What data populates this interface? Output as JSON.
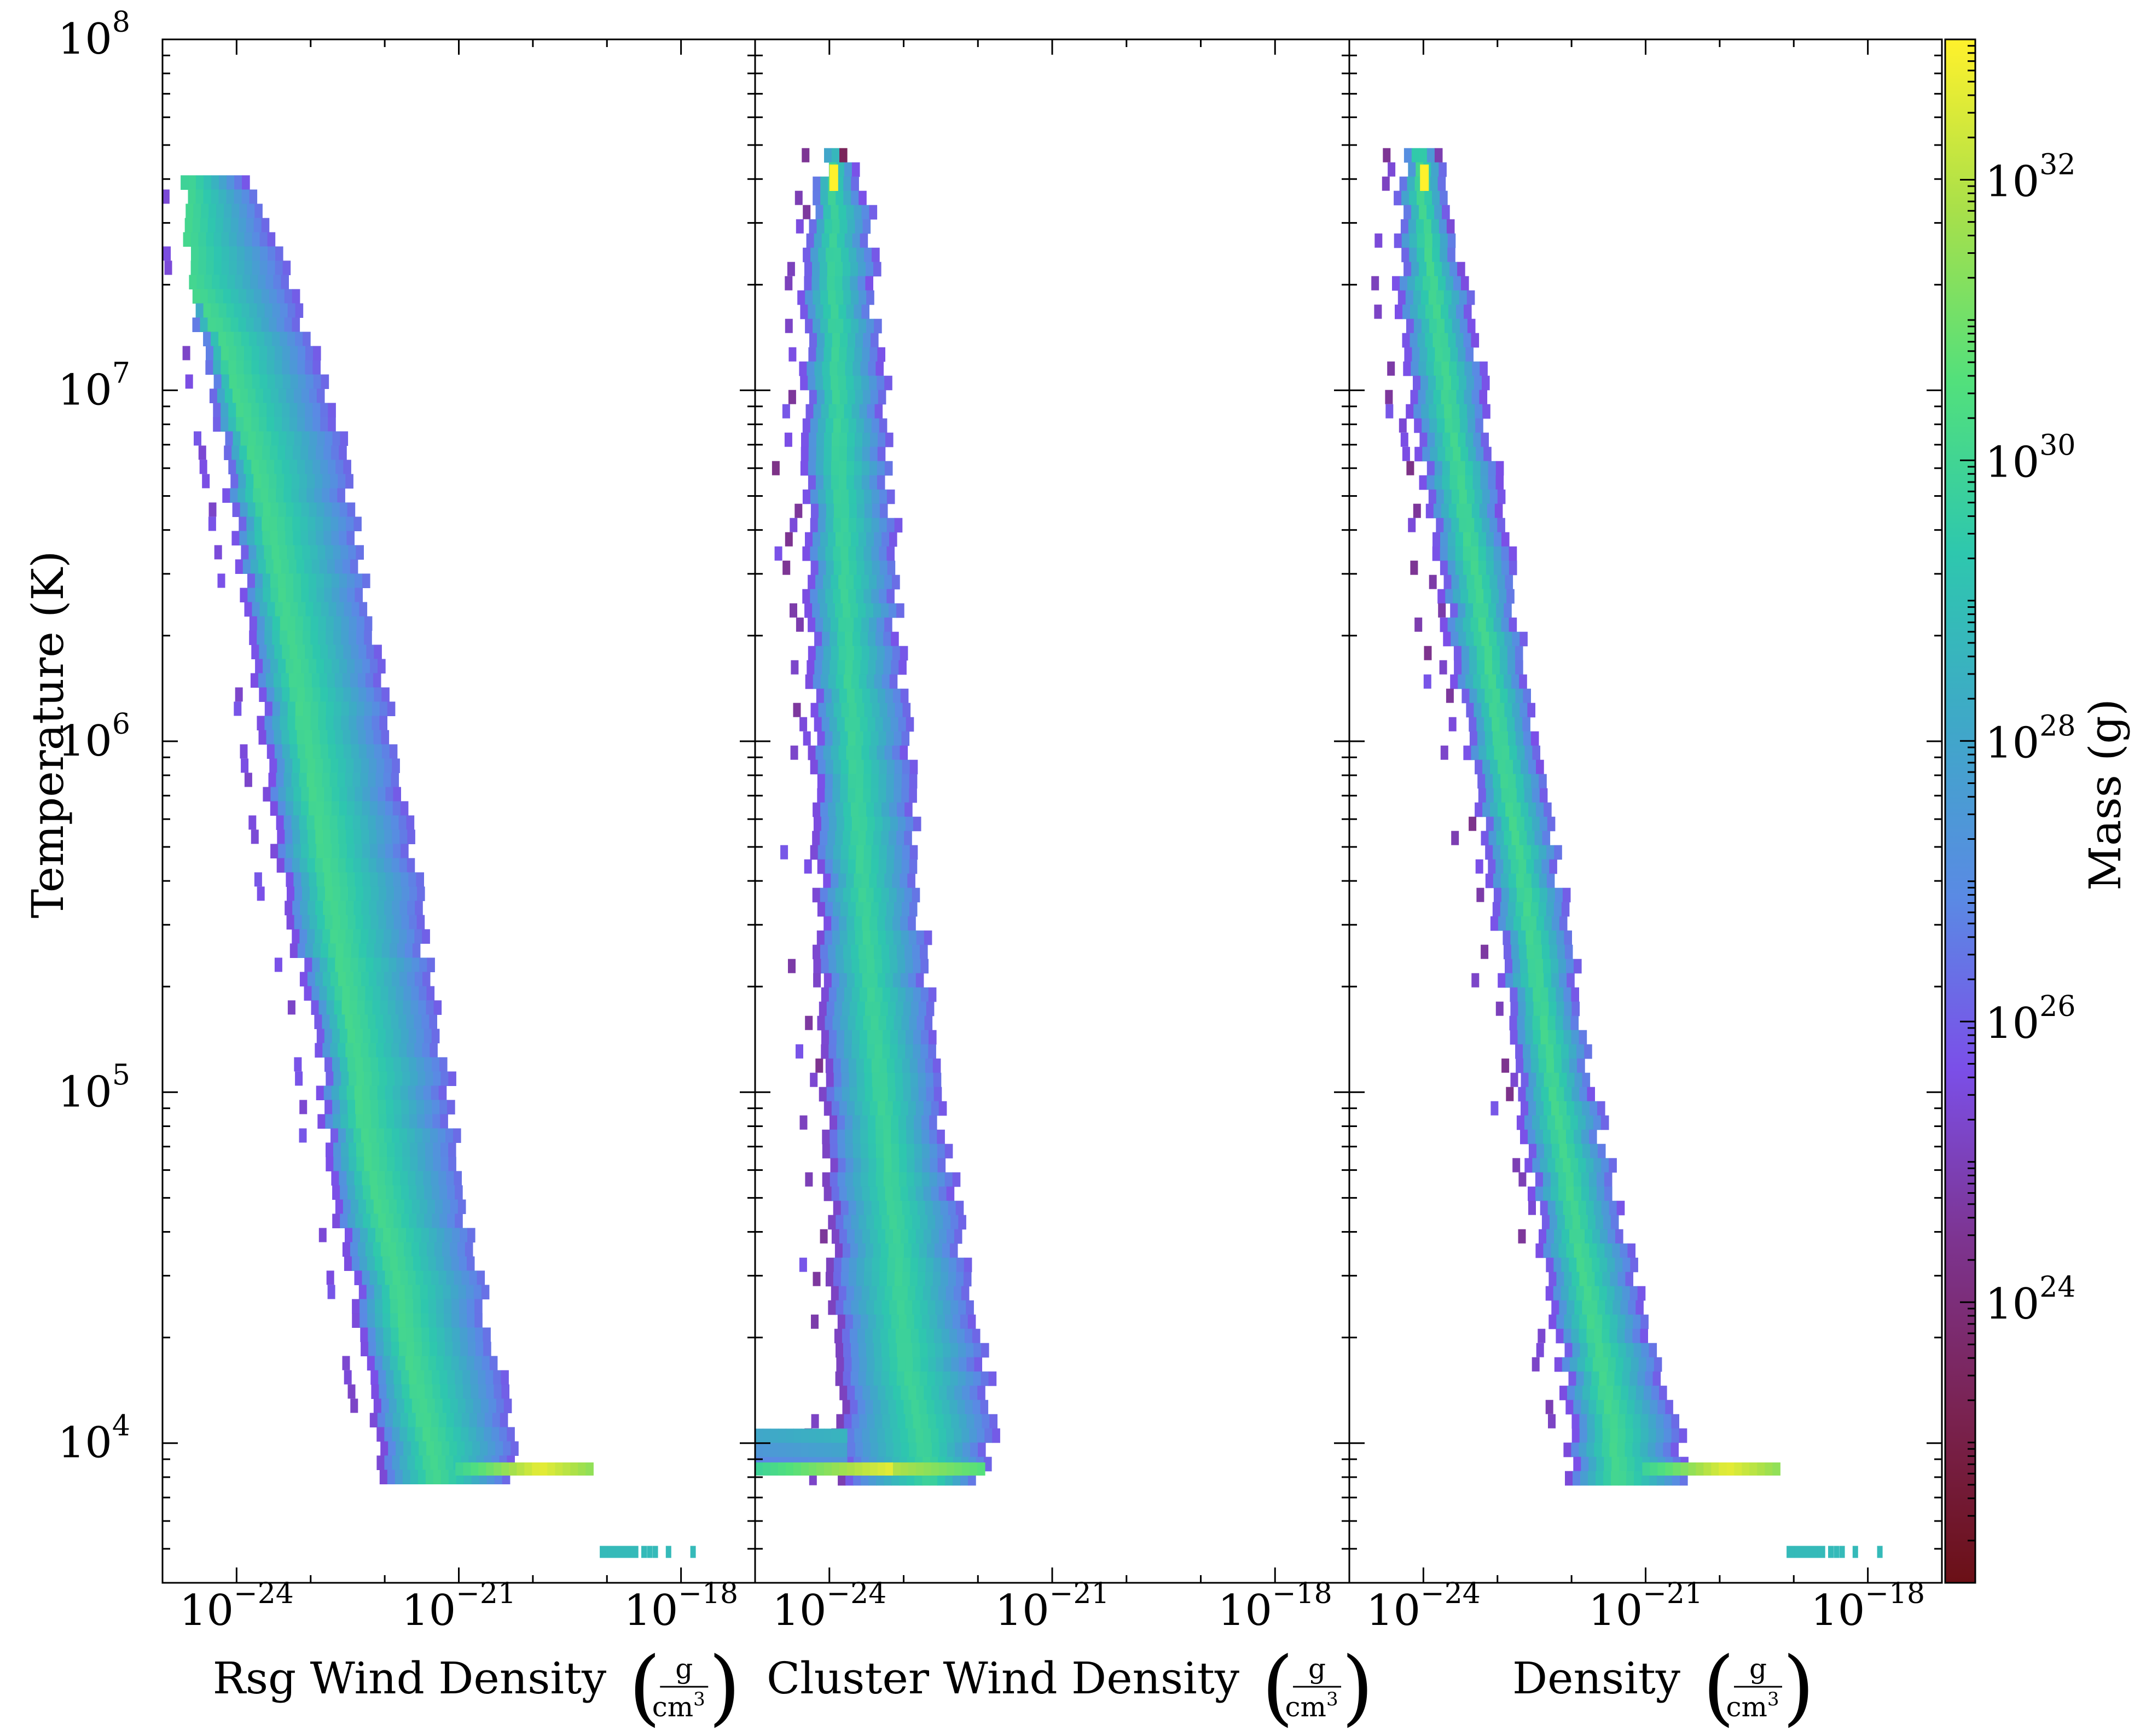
{
  "chart_data": {
    "type": "heatmap",
    "panels": [
      {
        "xlabel": "Rsg Wind Density",
        "xunit_num": "g",
        "xunit_den": "cm",
        "xunit_exp": "3",
        "bands": [
          {
            "T": [
              41000000.0,
              32000000.0,
              21000000.0,
              14000000.0,
              8700000.0,
              4200000.0,
              1900000.0,
              850000.0,
              370000.0,
              145000.0,
              65000.0,
              32000.0,
              16000.0,
              10000.0,
              7800.0
            ],
            "rho": [
              2e-25,
              2e-25,
              2.2e-25,
              3.4e-25,
              5e-25,
              8.9e-25,
              1.6e-24,
              2.4e-24,
              4e-24,
              1.2e-23,
              1.6e-23,
              3.2e-23,
              5.6e-23,
              8.3e-23,
              9.5e-23
            ],
            "peak": [
              2e-25,
              2e-25,
              2e-25,
              6e-25,
              1.1e-24,
              2.5e-24,
              5e-24,
              9e-24,
              1.7e-23,
              3.4e-23,
              5.5e-23,
              1.2e-22,
              2.2e-22,
              3.8e-22,
              4.6e-22
            ],
            "hi": [
              1.2e-24,
              2.2e-24,
              4.5e-24,
              9e-24,
              1.8e-23,
              4e-23,
              7.2e-23,
              1.3e-22,
              2.8e-22,
              5e-22,
              9e-22,
              1.8e-21,
              3.2e-21,
              5.5e-21,
              4.8e-21
            ],
            "cmax": 0.74
          }
        ],
        "hot_strip": {
          "T": 8500.0,
          "rho": [
            9e-22,
            6e-20
          ],
          "level": 0.97
        },
        "cool_strip": {
          "T": 4900.0,
          "rho": [
            8e-20,
            1.5e-18
          ],
          "level": 0.62
        }
      },
      {
        "xlabel": "Cluster Wind Density",
        "xunit_num": "g",
        "xunit_den": "cm",
        "xunit_exp": "3",
        "bands": [
          {
            "T": [
              49000000.0,
              35000000.0,
              19000000.0,
              10000000.0,
              5500000.0,
              3000000.0,
              1600000.0,
              830000.0,
              420000.0,
              200000.0,
              110000.0,
              60000.0,
              32000.0,
              17000.0,
              11000.0,
              7800.0
            ],
            "rho": [
              1e-24,
              6e-25,
              4.5e-25,
              4.8e-25,
              5e-25,
              5.2e-25,
              5.5e-25,
              6e-25,
              6.8e-25,
              7.2e-25,
              7.8e-25,
              8.8e-25,
              1.05e-24,
              1.2e-24,
              1.3e-24,
              1.3e-24
            ],
            "peak": [
              1.1e-24,
              1.05e-24,
              1.1e-24,
              1.2e-24,
              1.3e-24,
              1.5e-24,
              1.7e-24,
              2.1e-24,
              2.6e-24,
              3.4e-24,
              4.5e-24,
              6.2e-24,
              8e-24,
              1e-23,
              1.6e-23,
              2.2e-23
            ],
            "hi": [
              1.5e-24,
              3e-24,
              3.8e-24,
              5e-24,
              6e-24,
              7e-24,
              8.6e-24,
              1.1e-23,
              1.4e-23,
              1.9e-23,
              2.6e-23,
              3.9e-23,
              6.5e-23,
              1.1e-22,
              1.5e-22,
              1.1e-22
            ],
            "cmax": 0.72
          }
        ],
        "hot_strip": {
          "T": 8500.0,
          "rho": [
            1e-25,
            1e-22
          ],
          "level": 0.9
        },
        "shelf": {
          "T": [
            9000.0,
            11000.0
          ],
          "rho": [
            1e-25,
            1.5e-24
          ],
          "level": 0.55
        },
        "peak_spot": {
          "T": [
            37000000.0,
            44000000.0
          ],
          "rho": [
            1e-24,
            1.3e-24
          ],
          "level": 1.0
        }
      },
      {
        "xlabel": "Density",
        "xunit_num": "g",
        "xunit_den": "cm",
        "xunit_exp": "3",
        "bands": [
          {
            "T": [
              49000000.0,
              35000000.0,
              20000000.0,
              10000000.0,
              5000000.0,
              2500000.0,
              1250000.0,
              630000.0,
              320000.0,
              160000.0,
              80000.0,
              40000.0,
              20000.0,
              12000.0,
              7800.0
            ],
            "rho": [
              7e-25,
              4.5e-25,
              4.5e-25,
              6.3e-25,
              1.1e-24,
              1.8e-24,
              3.2e-24,
              5.5e-24,
              9e-24,
              1.4e-23,
              2.2e-23,
              3.6e-23,
              6.3e-23,
              9e-23,
              1e-22
            ],
            "peak": [
              8.5e-25,
              9.5e-25,
              1.3e-24,
              2e-24,
              3.2e-24,
              5.5e-24,
              9e-24,
              1.5e-23,
              2.5e-23,
              4e-23,
              6.5e-23,
              1.1e-22,
              2e-22,
              3.2e-22,
              4e-22
            ],
            "hi": [
              1.3e-24,
              2.1e-24,
              3.4e-24,
              5.6e-24,
              9.5e-24,
              1.6e-23,
              2.8e-23,
              4.8e-23,
              8e-23,
              1.4e-22,
              2.4e-22,
              5e-22,
              1e-21,
              2.3e-21,
              3.2e-21
            ],
            "cmax": 0.74
          }
        ],
        "hot_strip": {
          "T": 8500.0,
          "rho": [
            9e-22,
            6e-20
          ],
          "level": 0.97
        },
        "cool_strip": {
          "T": 4900.0,
          "rho": [
            8e-20,
            1.5e-18
          ],
          "level": 0.62
        },
        "peak_spot": {
          "T": [
            37000000.0,
            44000000.0
          ],
          "rho": [
            9e-25,
            1.1e-24
          ],
          "level": 1.0
        }
      }
    ],
    "xaxis": {
      "scale": "log",
      "range": [
        1e-25,
        1e-17
      ],
      "ticks": [
        {
          "base": "10",
          "exp": "−24",
          "value": 1e-24
        },
        {
          "base": "10",
          "exp": "−21",
          "value": 1e-21
        },
        {
          "base": "10",
          "exp": "−18",
          "value": 1e-18
        }
      ]
    },
    "yaxis": {
      "label": "Temperature  (K)",
      "scale": "log",
      "range": [
        4000,
        100000000.0
      ],
      "ticks": [
        {
          "base": "10",
          "exp": "4",
          "value": 10000.0
        },
        {
          "base": "10",
          "exp": "5",
          "value": 100000.0
        },
        {
          "base": "10",
          "exp": "6",
          "value": 1000000.0
        },
        {
          "base": "10",
          "exp": "7",
          "value": 10000000.0
        },
        {
          "base": "10",
          "exp": "8",
          "value": 100000000.0
        }
      ]
    },
    "colorbar": {
      "label": "Mass  (g)",
      "scale": "log",
      "range": [
        1e+22,
        1e+33
      ],
      "cmap": "turbo-like (dark red → purple → blue → teal → green → yellow)",
      "ticks": [
        {
          "base": "10",
          "exp": "24",
          "value": 1e+24
        },
        {
          "base": "10",
          "exp": "26",
          "value": 1e+26
        },
        {
          "base": "10",
          "exp": "28",
          "value": 1e+28
        },
        {
          "base": "10",
          "exp": "30",
          "value": 1e+30
        },
        {
          "base": "10",
          "exp": "32",
          "value": 1e+32
        }
      ]
    },
    "colors": [
      "#6b1016",
      "#7a2352",
      "#7d3490",
      "#7b4fe8",
      "#5a8ae4",
      "#3fa8c8",
      "#2ec7ae",
      "#52e07c",
      "#a8e04a",
      "#fff12c"
    ]
  }
}
